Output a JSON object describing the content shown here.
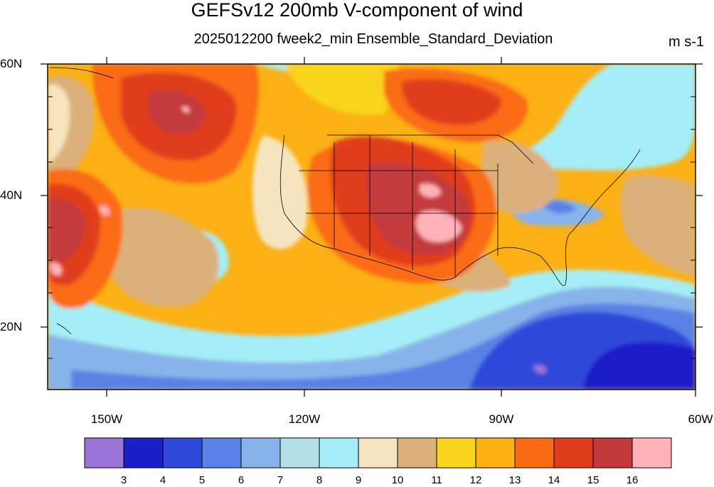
{
  "title": "GEFSv12 200mb V-component of wind",
  "subtitle": "2025012200 fweek2_min Ensemble_Standard_Deviation",
  "units": "m s-1",
  "lat_labels": [
    "60N",
    "40N",
    "20N"
  ],
  "lon_labels": [
    "150W",
    "120W",
    "90W",
    "60W"
  ],
  "colorbar": {
    "labels": [
      "3",
      "4",
      "5",
      "6",
      "7",
      "8",
      "9",
      "10",
      "11",
      "12",
      "13",
      "14",
      "15",
      "16"
    ],
    "colors": [
      "#9c73d6",
      "#1b1fc8",
      "#2e49d9",
      "#5a82e6",
      "#88b3ea",
      "#b2e0e6",
      "#a5eef8",
      "#f6e4c0",
      "#dcb07a",
      "#f9d41e",
      "#fbb015",
      "#fa6c12",
      "#e03c1e",
      "#c33a3c",
      "#ffb3b8"
    ]
  },
  "map": {
    "lat_range": [
      10,
      60
    ],
    "lon_range": [
      -160,
      -60
    ],
    "background": "#fbb015"
  }
}
